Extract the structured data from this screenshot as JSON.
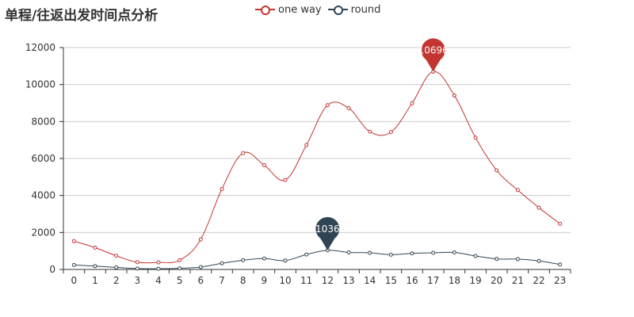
{
  "title": "单程/往返出发时间点分析",
  "chart_data": {
    "type": "line",
    "smooth": true,
    "title": "单程/往返出发时间点分析",
    "xlabel": "",
    "ylabel": "",
    "categories": [
      "0",
      "1",
      "2",
      "3",
      "4",
      "5",
      "6",
      "7",
      "8",
      "9",
      "10",
      "11",
      "12",
      "13",
      "14",
      "15",
      "16",
      "17",
      "18",
      "19",
      "20",
      "21",
      "22",
      "23"
    ],
    "ylim": [
      0,
      12000
    ],
    "yticks": [
      0,
      2000,
      4000,
      6000,
      8000,
      10000,
      12000
    ],
    "grid": "horizontal",
    "legend_position": "top-center",
    "series": [
      {
        "name": "one way",
        "color": "#c23531",
        "values": [
          1530,
          1180,
          740,
          390,
          380,
          500,
          1630,
          4350,
          6290,
          5640,
          4840,
          6730,
          8880,
          8720,
          7450,
          7430,
          8990,
          10696,
          9410,
          7130,
          5360,
          4290,
          3340,
          2470
        ],
        "markPoint": {
          "label": "10696",
          "category": "17",
          "value": 10696
        }
      },
      {
        "name": "round",
        "color": "#2f4554",
        "values": [
          240,
          180,
          110,
          50,
          40,
          60,
          130,
          330,
          500,
          590,
          480,
          810,
          1036,
          920,
          900,
          800,
          870,
          900,
          920,
          730,
          570,
          560,
          460,
          270
        ],
        "markPoint": {
          "label": "1036",
          "category": "12",
          "value": 1036
        }
      }
    ]
  }
}
